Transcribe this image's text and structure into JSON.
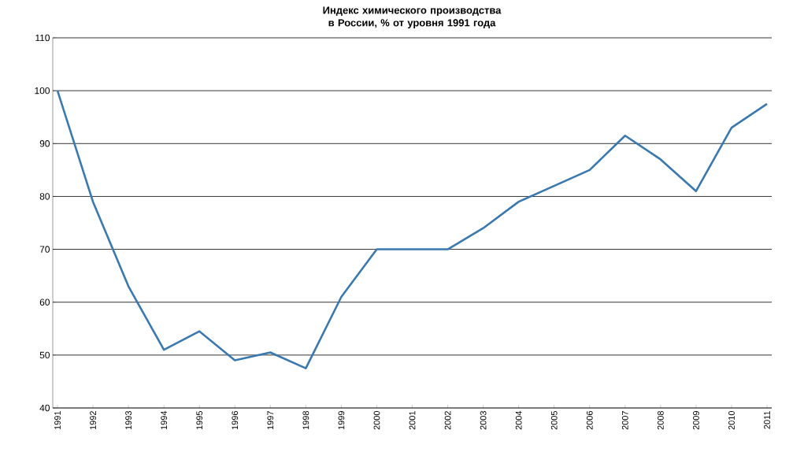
{
  "chart_data": {
    "type": "line",
    "title": "Индекс химического производства в России, % от уровня 1991 года",
    "categories": [
      "1991",
      "1992",
      "1993",
      "1994",
      "1995",
      "1996",
      "1997",
      "1998",
      "1999",
      "2000",
      "2001",
      "2002",
      "2003",
      "2004",
      "2005",
      "2006",
      "2007",
      "2008",
      "2009",
      "2010",
      "2011"
    ],
    "series": [
      {
        "color": "#3a78b0",
        "values": [
          100,
          79,
          63,
          51,
          54.5,
          49,
          50.5,
          47.5,
          61,
          70,
          70,
          70,
          74,
          79,
          82,
          85,
          91.5,
          87,
          81,
          93,
          97.5
        ]
      }
    ],
    "ylim": [
      40,
      110
    ],
    "yticks": [
      40,
      50,
      60,
      70,
      80,
      90,
      100,
      110
    ],
    "grid": "y",
    "marker": "none",
    "line_style": "solid"
  }
}
